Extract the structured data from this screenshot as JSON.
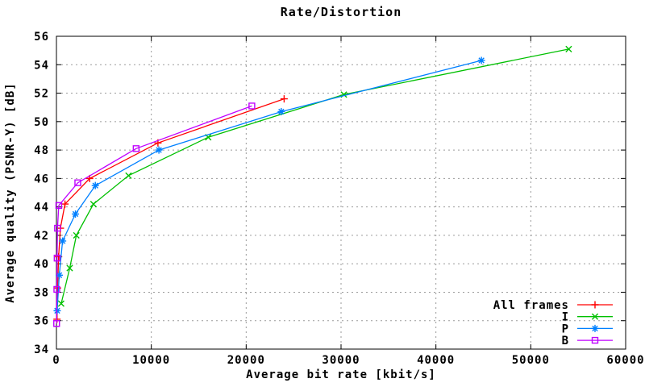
{
  "title": "Rate/Distortion",
  "chart_data": {
    "type": "line",
    "title": "Rate/Distortion",
    "xlabel": "Average bit rate [kbit/s]",
    "ylabel": "Average quality (PSNR-Y) [dB]",
    "xlim": [
      0,
      60000
    ],
    "ylim": [
      34,
      56
    ],
    "xticks": [
      0,
      10000,
      20000,
      30000,
      40000,
      50000,
      60000
    ],
    "yticks": [
      34,
      36,
      38,
      40,
      42,
      44,
      46,
      48,
      50,
      52,
      54,
      56
    ],
    "grid": true,
    "grid_color": "#9a9a9a",
    "axis_color": "#000000",
    "legend_position": "bottom-right",
    "series": [
      {
        "name": "All frames",
        "color": "#ff0000",
        "marker": "plus",
        "points": [
          [
            60,
            36.1
          ],
          [
            120,
            38.3
          ],
          [
            230,
            40.5
          ],
          [
            420,
            42.5
          ],
          [
            900,
            44.2
          ],
          [
            3500,
            46.0
          ],
          [
            10700,
            48.5
          ],
          [
            24000,
            51.6
          ]
        ]
      },
      {
        "name": "I",
        "color": "#00c000",
        "marker": "cross",
        "points": [
          [
            500,
            37.2
          ],
          [
            1400,
            39.7
          ],
          [
            2100,
            42.0
          ],
          [
            3900,
            44.2
          ],
          [
            7600,
            46.2
          ],
          [
            16000,
            48.9
          ],
          [
            30300,
            51.9
          ],
          [
            54000,
            55.1
          ]
        ]
      },
      {
        "name": "P",
        "color": "#0080ff",
        "marker": "asterisk",
        "points": [
          [
            80,
            36.7
          ],
          [
            300,
            39.2
          ],
          [
            650,
            41.6
          ],
          [
            2000,
            43.5
          ],
          [
            4100,
            45.5
          ],
          [
            10800,
            48.0
          ],
          [
            23700,
            50.7
          ],
          [
            44800,
            54.3
          ]
        ]
      },
      {
        "name": "B",
        "color": "#c000ff",
        "marker": "square",
        "points": [
          [
            20,
            35.8
          ],
          [
            40,
            38.2
          ],
          [
            70,
            40.4
          ],
          [
            110,
            42.5
          ],
          [
            250,
            44.1
          ],
          [
            2250,
            45.7
          ],
          [
            8400,
            48.1
          ],
          [
            20600,
            51.1
          ]
        ]
      }
    ]
  }
}
